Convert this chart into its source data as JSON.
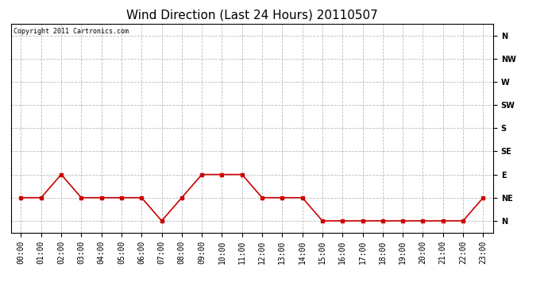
{
  "title": "Wind Direction (Last 24 Hours) 20110507",
  "copyright_text": "Copyright 2011 Cartronics.com",
  "x_labels": [
    "00:00",
    "01:00",
    "02:00",
    "03:00",
    "04:00",
    "05:00",
    "06:00",
    "07:00",
    "08:00",
    "09:00",
    "10:00",
    "11:00",
    "12:00",
    "13:00",
    "14:00",
    "15:00",
    "16:00",
    "17:00",
    "18:00",
    "19:00",
    "20:00",
    "21:00",
    "22:00",
    "23:00"
  ],
  "y_ticks": [
    0,
    1,
    2,
    3,
    4,
    5,
    6,
    7,
    8
  ],
  "y_labels": [
    "N",
    "NE",
    "E",
    "SE",
    "S",
    "SW",
    "W",
    "NW",
    "N"
  ],
  "wind_values": [
    1,
    1,
    2,
    1,
    1,
    1,
    1,
    0,
    1,
    2,
    2,
    2,
    1,
    1,
    1,
    0,
    0,
    0,
    0,
    0,
    0,
    0,
    0,
    1
  ],
  "line_color": "#cc0000",
  "marker": "s",
  "marker_size": 3,
  "grid_color": "#bbbbbb",
  "grid_style": "--",
  "bg_color": "#ffffff",
  "title_fontsize": 11,
  "axis_label_fontsize": 7,
  "copyright_fontsize": 6,
  "figwidth": 6.9,
  "figheight": 3.75,
  "dpi": 100
}
